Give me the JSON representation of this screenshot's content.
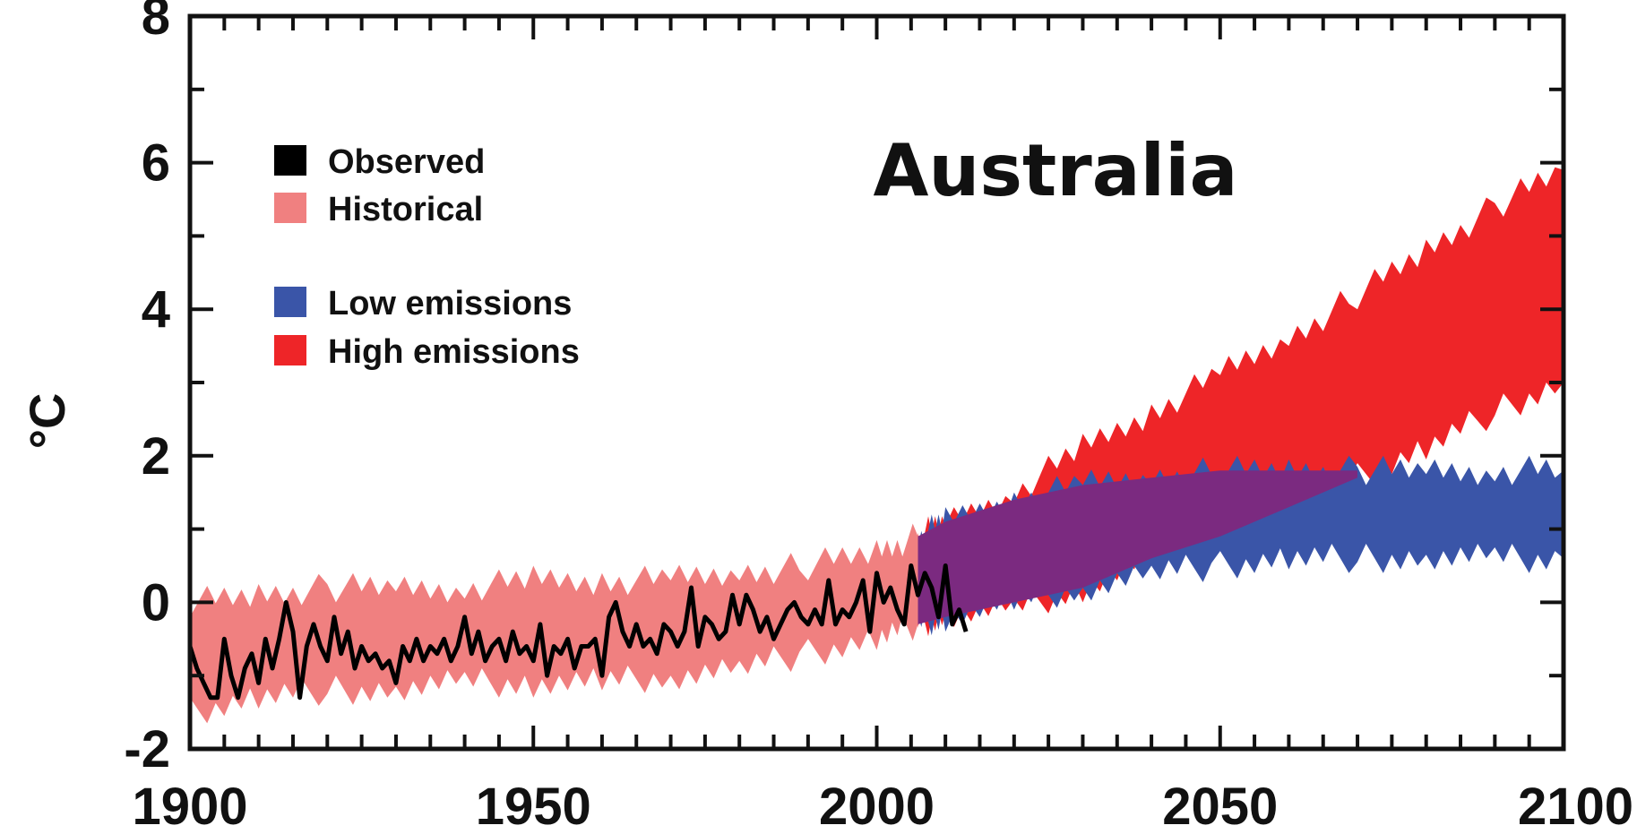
{
  "chart_data": {
    "type": "area",
    "title": "Australia",
    "ylabel": "°C",
    "xlabel": "",
    "xlim": [
      1900,
      2100
    ],
    "ylim": [
      -2,
      8
    ],
    "xticks": [
      1900,
      1950,
      2000,
      2050,
      2100
    ],
    "xtick_labels": [
      "1900",
      "1950",
      "2000",
      "2050",
      "2100"
    ],
    "yticks": [
      -2,
      0,
      2,
      4,
      6,
      8
    ],
    "ytick_labels": [
      "-2",
      "0",
      "2",
      "4",
      "6",
      "8"
    ],
    "grid": false,
    "legend_position": "top-left",
    "legend": [
      {
        "label": "Observed",
        "color": "#000000"
      },
      {
        "label": "Historical",
        "color": "#f08080"
      },
      {
        "label": "Low emissions",
        "color": "#3a55a8"
      },
      {
        "label": "High emissions",
        "color": "#ee2528"
      }
    ],
    "series": [
      {
        "name": "Historical",
        "kind": "band",
        "color": "#f08080",
        "x": [
          1900,
          1910,
          1920,
          1930,
          1940,
          1950,
          1960,
          1970,
          1980,
          1990,
          2000,
          2006
        ],
        "lower": [
          -1.5,
          -1.3,
          -1.2,
          -1.2,
          -1.1,
          -1.1,
          -1.1,
          -1.0,
          -0.9,
          -0.7,
          -0.5,
          -0.3
        ],
        "upper": [
          0.0,
          0.1,
          0.2,
          0.2,
          0.2,
          0.3,
          0.3,
          0.3,
          0.4,
          0.5,
          0.7,
          0.9
        ]
      },
      {
        "name": "High emissions",
        "kind": "band",
        "color": "#ee2528",
        "x": [
          2006,
          2010,
          2020,
          2030,
          2040,
          2050,
          2060,
          2070,
          2080,
          2090,
          2100
        ],
        "lower": [
          -0.3,
          -0.2,
          -0.1,
          0.2,
          0.6,
          0.9,
          1.3,
          1.7,
          2.1,
          2.6,
          3.0
        ],
        "upper": [
          0.9,
          1.1,
          1.5,
          2.1,
          2.6,
          3.1,
          3.6,
          4.2,
          4.8,
          5.4,
          5.9
        ]
      },
      {
        "name": "Low emissions",
        "kind": "band",
        "color": "#3a55a8",
        "x": [
          2006,
          2010,
          2020,
          2030,
          2040,
          2050,
          2060,
          2070,
          2080,
          2090,
          2100
        ],
        "lower": [
          -0.3,
          -0.2,
          0.0,
          0.2,
          0.4,
          0.5,
          0.6,
          0.6,
          0.6,
          0.6,
          0.6
        ],
        "upper": [
          0.9,
          1.1,
          1.4,
          1.6,
          1.7,
          1.8,
          1.8,
          1.8,
          1.8,
          1.8,
          1.8
        ]
      },
      {
        "name": "Observed",
        "kind": "line",
        "color": "#000000",
        "x": [
          1900,
          1901,
          1902,
          1903,
          1904,
          1905,
          1906,
          1907,
          1908,
          1909,
          1910,
          1911,
          1912,
          1913,
          1914,
          1915,
          1916,
          1917,
          1918,
          1919,
          1920,
          1921,
          1922,
          1923,
          1924,
          1925,
          1926,
          1927,
          1928,
          1929,
          1930,
          1931,
          1932,
          1933,
          1934,
          1935,
          1936,
          1937,
          1938,
          1939,
          1940,
          1941,
          1942,
          1943,
          1944,
          1945,
          1946,
          1947,
          1948,
          1949,
          1950,
          1951,
          1952,
          1953,
          1954,
          1955,
          1956,
          1957,
          1958,
          1959,
          1960,
          1961,
          1962,
          1963,
          1964,
          1965,
          1966,
          1967,
          1968,
          1969,
          1970,
          1971,
          1972,
          1973,
          1974,
          1975,
          1976,
          1977,
          1978,
          1979,
          1980,
          1981,
          1982,
          1983,
          1984,
          1985,
          1986,
          1987,
          1988,
          1989,
          1990,
          1991,
          1992,
          1993,
          1994,
          1995,
          1996,
          1997,
          1998,
          1999,
          2000,
          2001,
          2002,
          2003,
          2004,
          2005,
          2006,
          2007,
          2008,
          2009,
          2010,
          2011,
          2012,
          2013
        ],
        "y": [
          -0.6,
          -0.9,
          -1.1,
          -1.3,
          -1.3,
          -0.5,
          -1.0,
          -1.3,
          -0.9,
          -0.7,
          -1.1,
          -0.5,
          -0.9,
          -0.5,
          0.0,
          -0.4,
          -1.3,
          -0.6,
          -0.3,
          -0.6,
          -0.8,
          -0.2,
          -0.7,
          -0.4,
          -0.9,
          -0.6,
          -0.8,
          -0.7,
          -0.9,
          -0.8,
          -1.1,
          -0.6,
          -0.8,
          -0.5,
          -0.8,
          -0.6,
          -0.7,
          -0.5,
          -0.8,
          -0.6,
          -0.2,
          -0.7,
          -0.4,
          -0.8,
          -0.6,
          -0.5,
          -0.8,
          -0.4,
          -0.7,
          -0.6,
          -0.8,
          -0.3,
          -1.0,
          -0.6,
          -0.7,
          -0.5,
          -0.9,
          -0.6,
          -0.6,
          -0.5,
          -1.0,
          -0.2,
          0.0,
          -0.4,
          -0.6,
          -0.3,
          -0.6,
          -0.5,
          -0.7,
          -0.3,
          -0.4,
          -0.6,
          -0.4,
          0.2,
          -0.6,
          -0.2,
          -0.3,
          -0.5,
          -0.4,
          0.1,
          -0.3,
          0.1,
          -0.1,
          -0.4,
          -0.2,
          -0.5,
          -0.3,
          -0.1,
          0.0,
          -0.2,
          -0.3,
          -0.1,
          -0.3,
          0.3,
          -0.3,
          -0.1,
          -0.2,
          0.0,
          0.3,
          -0.4,
          0.4,
          0.0,
          0.2,
          -0.1,
          -0.3,
          0.5,
          0.1,
          0.4,
          0.2,
          -0.2,
          0.5,
          -0.3,
          -0.1,
          -0.4
        ]
      }
    ]
  }
}
